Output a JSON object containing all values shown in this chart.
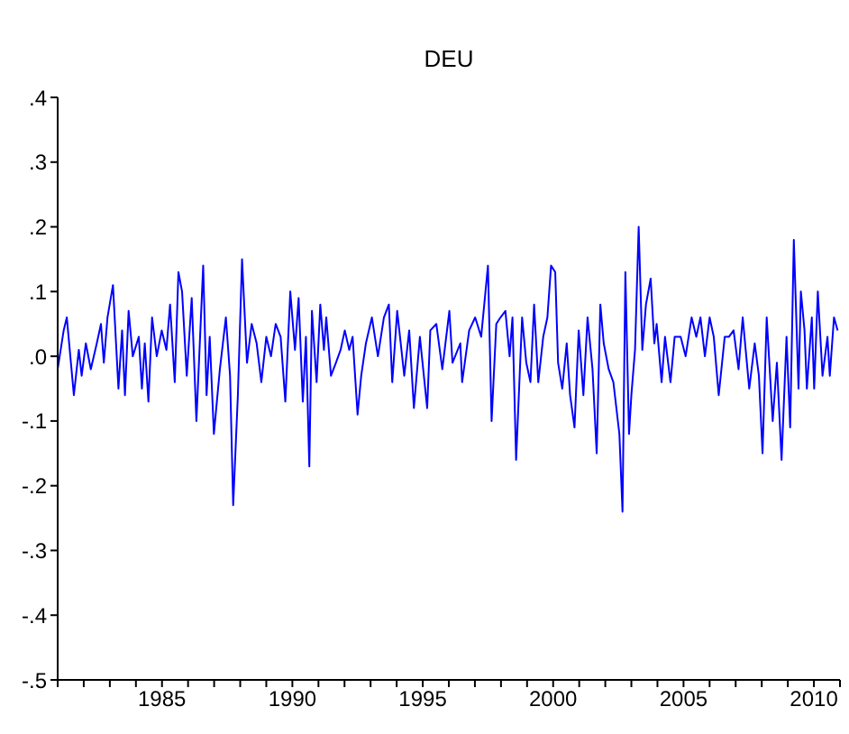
{
  "chart_data": {
    "type": "line",
    "title": "DEU",
    "x": [
      1981.0,
      1981.23,
      1981.35,
      1981.62,
      1981.81,
      1981.92,
      1982.08,
      1982.27,
      1982.5,
      1982.66,
      1982.77,
      1982.91,
      1983.12,
      1983.33,
      1983.47,
      1983.58,
      1983.72,
      1983.88,
      1984.11,
      1984.23,
      1984.34,
      1984.48,
      1984.62,
      1984.8,
      1984.99,
      1985.17,
      1985.31,
      1985.49,
      1985.63,
      1985.77,
      1985.95,
      1986.14,
      1986.32,
      1986.58,
      1986.71,
      1986.83,
      1986.99,
      1987.22,
      1987.45,
      1987.61,
      1987.73,
      1987.91,
      1988.07,
      1988.26,
      1988.44,
      1988.63,
      1988.81,
      1989.0,
      1989.18,
      1989.36,
      1989.55,
      1989.73,
      1989.92,
      1990.1,
      1990.24,
      1990.4,
      1990.52,
      1990.65,
      1990.75,
      1990.93,
      1991.07,
      1991.21,
      1991.3,
      1991.48,
      1991.67,
      1991.85,
      1992.01,
      1992.18,
      1992.31,
      1992.5,
      1992.64,
      1992.82,
      1993.05,
      1993.28,
      1993.51,
      1993.7,
      1993.83,
      1994.02,
      1994.29,
      1994.48,
      1994.66,
      1994.89,
      1995.17,
      1995.29,
      1995.52,
      1995.75,
      1996.02,
      1996.14,
      1996.44,
      1996.51,
      1996.78,
      1997.01,
      1997.24,
      1997.5,
      1997.64,
      1997.82,
      1997.98,
      1998.17,
      1998.33,
      1998.44,
      1998.58,
      1998.81,
      1998.97,
      1999.13,
      1999.27,
      1999.43,
      1999.62,
      1999.78,
      1999.92,
      2000.08,
      2000.19,
      2000.35,
      2000.52,
      2000.65,
      2000.82,
      2000.98,
      2001.16,
      2001.32,
      2001.51,
      2001.67,
      2001.81,
      2001.94,
      2002.13,
      2002.31,
      2002.54,
      2002.66,
      2002.77,
      2002.91,
      2003.0,
      2003.14,
      2003.28,
      2003.42,
      2003.56,
      2003.74,
      2003.88,
      2003.97,
      2004.16,
      2004.29,
      2004.5,
      2004.66,
      2004.89,
      2005.08,
      2005.31,
      2005.49,
      2005.65,
      2005.82,
      2006.0,
      2006.16,
      2006.35,
      2006.58,
      2006.74,
      2006.92,
      2007.11,
      2007.27,
      2007.52,
      2007.73,
      2007.89,
      2008.03,
      2008.19,
      2008.42,
      2008.58,
      2008.76,
      2008.95,
      2009.09,
      2009.23,
      2009.41,
      2009.5,
      2009.64,
      2009.73,
      2009.92,
      2010.01,
      2010.15,
      2010.33,
      2010.52,
      2010.61,
      2010.77,
      2010.91
    ],
    "series": [
      {
        "color": "#0000ff",
        "values": [
          -0.02,
          0.04,
          0.06,
          -0.06,
          0.01,
          -0.03,
          0.02,
          -0.02,
          0.02,
          0.05,
          -0.01,
          0.06,
          0.11,
          -0.05,
          0.04,
          -0.06,
          0.07,
          0.0,
          0.03,
          -0.05,
          0.02,
          -0.07,
          0.06,
          0.0,
          0.04,
          0.01,
          0.08,
          -0.04,
          0.13,
          0.1,
          -0.03,
          0.09,
          -0.1,
          0.14,
          -0.06,
          0.03,
          -0.12,
          -0.02,
          0.06,
          -0.03,
          -0.23,
          -0.06,
          0.15,
          -0.01,
          0.05,
          0.02,
          -0.04,
          0.03,
          0.0,
          0.05,
          0.03,
          -0.07,
          0.1,
          0.01,
          0.09,
          -0.07,
          0.03,
          -0.17,
          0.07,
          -0.04,
          0.08,
          0.01,
          0.06,
          -0.03,
          -0.01,
          0.01,
          0.04,
          0.01,
          0.03,
          -0.09,
          -0.03,
          0.02,
          0.06,
          0.0,
          0.06,
          0.08,
          -0.04,
          0.07,
          -0.03,
          0.04,
          -0.08,
          0.03,
          -0.08,
          0.04,
          0.05,
          -0.02,
          0.07,
          -0.01,
          0.02,
          -0.04,
          0.04,
          0.06,
          0.03,
          0.14,
          -0.1,
          0.05,
          0.06,
          0.07,
          0.0,
          0.06,
          -0.16,
          0.06,
          -0.01,
          -0.04,
          0.08,
          -0.04,
          0.03,
          0.06,
          0.14,
          0.13,
          -0.01,
          -0.05,
          0.02,
          -0.06,
          -0.11,
          0.04,
          -0.06,
          0.06,
          -0.02,
          -0.15,
          0.08,
          0.02,
          -0.02,
          -0.04,
          -0.12,
          -0.24,
          0.13,
          -0.12,
          -0.06,
          0.01,
          0.2,
          0.01,
          0.08,
          0.12,
          0.02,
          0.05,
          -0.04,
          0.03,
          -0.04,
          0.03,
          0.03,
          0.0,
          0.06,
          0.03,
          0.06,
          0.0,
          0.06,
          0.03,
          -0.06,
          0.03,
          0.03,
          0.04,
          -0.02,
          0.06,
          -0.05,
          0.02,
          -0.03,
          -0.15,
          0.06,
          -0.1,
          -0.01,
          -0.16,
          0.03,
          -0.11,
          0.18,
          -0.05,
          0.1,
          0.04,
          -0.05,
          0.06,
          -0.05,
          0.1,
          -0.03,
          0.03,
          -0.03,
          0.06,
          0.04
        ]
      }
    ],
    "xlim": [
      1981,
      2011
    ],
    "xticks": [
      {
        "value": 1981,
        "label": null
      },
      {
        "value": 1982,
        "label": null
      },
      {
        "value": 1983,
        "label": null
      },
      {
        "value": 1984,
        "label": null
      },
      1985,
      {
        "value": 1986,
        "label": null
      },
      {
        "value": 1987,
        "label": null
      },
      {
        "value": 1988,
        "label": null
      },
      {
        "value": 1989,
        "label": null
      },
      1990,
      {
        "value": 1991,
        "label": null
      },
      {
        "value": 1992,
        "label": null
      },
      {
        "value": 1993,
        "label": null
      },
      {
        "value": 1994,
        "label": null
      },
      1995,
      {
        "value": 1996,
        "label": null
      },
      {
        "value": 1997,
        "label": null
      },
      {
        "value": 1998,
        "label": null
      },
      {
        "value": 1999,
        "label": null
      },
      2000,
      {
        "value": 2001,
        "label": null
      },
      {
        "value": 2002,
        "label": null
      },
      {
        "value": 2003,
        "label": null
      },
      {
        "value": 2004,
        "label": null
      },
      2005,
      {
        "value": 2006,
        "label": null
      },
      {
        "value": 2007,
        "label": null
      },
      {
        "value": 2008,
        "label": null
      },
      {
        "value": 2009,
        "label": null
      },
      2010,
      {
        "value": 2011,
        "label": null
      }
    ],
    "ylim": [
      -0.5,
      0.4
    ],
    "yticks": [
      {
        "value": -0.5,
        "label": "-.5"
      },
      {
        "value": -0.4,
        "label": "-.4"
      },
      {
        "value": -0.3,
        "label": "-.3"
      },
      {
        "value": -0.2,
        "label": "-.2"
      },
      {
        "value": -0.1,
        "label": "-.1"
      },
      {
        "value": 0,
        "label": ".0"
      },
      {
        "value": 0.1,
        "label": ".1"
      },
      {
        "value": 0.2,
        "label": ".2"
      },
      {
        "value": 0.3,
        "label": ".3"
      },
      {
        "value": 0.4,
        "label": ".4"
      }
    ]
  }
}
